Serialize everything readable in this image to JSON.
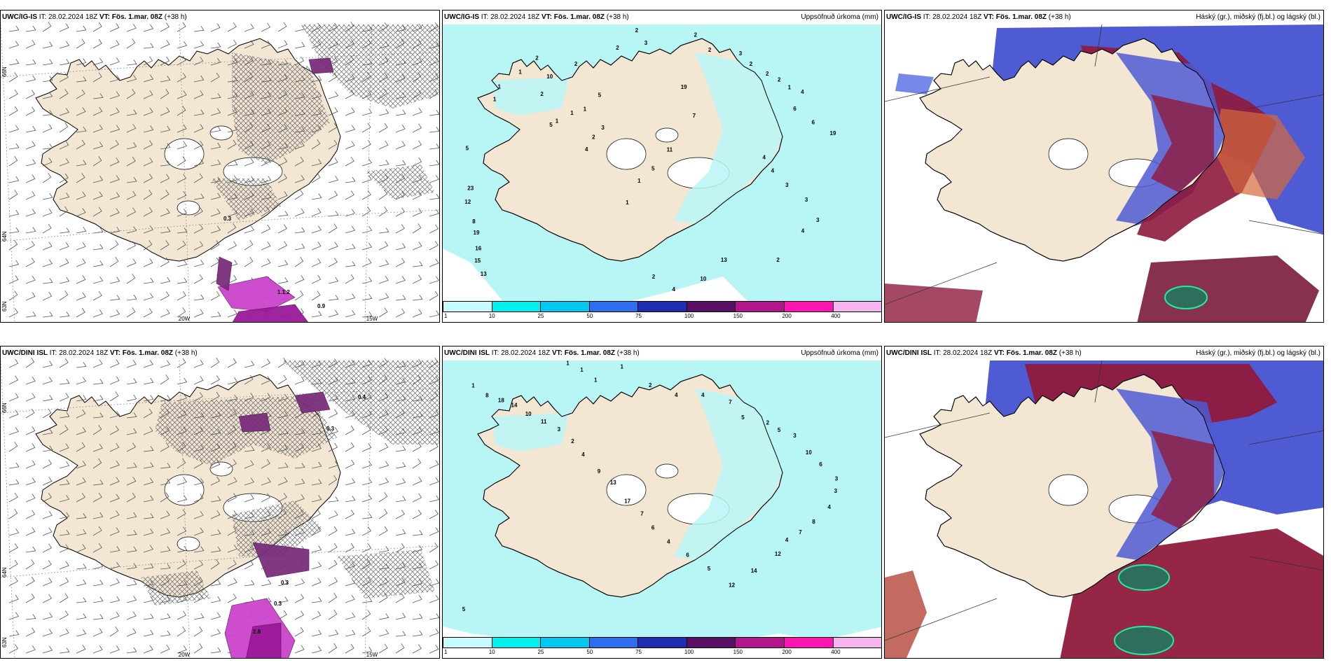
{
  "panels": {
    "top_wind": {
      "model": "UWC/IG-IS",
      "it": "IT: 28.02.2024 18Z",
      "vt_label": "VT:",
      "vt": "Fös. 1.mar. 08Z",
      "lead": "(+38 h)",
      "lon_labels": [
        "20W",
        "15W"
      ],
      "lat_labels": [
        "66N",
        "64N",
        "63N"
      ],
      "values": [
        "1.1.2",
        "0.9",
        "0.3"
      ]
    },
    "top_precip": {
      "model": "UWC/IG-IS",
      "it": "IT: 28.02.2024 18Z",
      "vt_label": "VT:",
      "vt": "Fös. 1.mar. 08Z",
      "lead": "(+38 h)",
      "right_title": "Uppsöfnuð úrkoma (mm)",
      "numbers": [
        "2",
        "3",
        "2",
        "2",
        "2",
        "10",
        "2",
        "1",
        "1",
        "1",
        "5",
        "23",
        "12",
        "8",
        "19",
        "16",
        "15",
        "13",
        "2",
        "2",
        "3",
        "2",
        "2",
        "2",
        "1",
        "4",
        "6",
        "6",
        "19",
        "4",
        "4",
        "3",
        "3",
        "3",
        "4",
        "2",
        "13",
        "10",
        "4",
        "2",
        "3",
        "2",
        "4",
        "5",
        "19",
        "7",
        "11",
        "5",
        "1",
        "1",
        "1",
        "1",
        "1",
        "5"
      ]
    },
    "top_cloud": {
      "model": "UWC/IG-IS",
      "it": "IT: 28.02.2024 18Z",
      "vt_label": "VT:",
      "vt": "Fös. 1.mar. 08Z",
      "lead": "(+38 h)",
      "right_title": "Háský (gr.), miðský (fj.bl.) og lágský (bl.)"
    },
    "bottom_wind": {
      "model": "UWC/DINI ISL",
      "it": "IT: 28.02.2024 18Z",
      "vt_label": "VT:",
      "vt": "Fös. 1.mar. 08Z",
      "lead": "(+38 h)",
      "lon_labels": [
        "20W",
        "15W"
      ],
      "lat_labels": [
        "66N",
        "64N",
        "63N"
      ],
      "values": [
        "0.3",
        "0.3",
        "0.4",
        "0.3",
        "2.8"
      ]
    },
    "bottom_precip": {
      "model": "UWC/DINI ISL",
      "it": "IT: 28.02.2024 18Z",
      "vt_label": "VT:",
      "vt": "Fös. 1.mar. 08Z",
      "lead": "(+38 h)",
      "right_title": "Uppsöfnuð úrkoma (mm)",
      "numbers": [
        "1",
        "1",
        "1",
        "1",
        "2",
        "4",
        "4",
        "7",
        "5",
        "2",
        "5",
        "3",
        "10",
        "6",
        "3",
        "3",
        "4",
        "8",
        "7",
        "4",
        "12",
        "14",
        "12",
        "5",
        "6",
        "4",
        "6",
        "7",
        "17",
        "13",
        "9",
        "4",
        "2",
        "3",
        "11",
        "10",
        "14",
        "18",
        "8",
        "1",
        "5"
      ]
    },
    "bottom_cloud": {
      "model": "UWC/DINI ISL",
      "it": "IT: 28.02.2024 18Z",
      "vt_label": "VT:",
      "vt": "Fös. 1.mar. 08Z",
      "lead": "(+38 h)",
      "right_title": "Háský (gr.), miðský (fj.bl.) og lágský (bl.)"
    }
  },
  "precip_legend": {
    "ticks": [
      "1",
      "10",
      "25",
      "50",
      "75",
      "100",
      "150",
      "200",
      "400"
    ],
    "colors": [
      "#c8fbff",
      "#00f0f0",
      "#00c8f0",
      "#2d6ef0",
      "#1e2eb4",
      "#5a0f64",
      "#b4148c",
      "#ff14b4",
      "#f5b4f0"
    ]
  },
  "colors": {
    "land": "#f3e6d3",
    "precip_light": "#b8f6f6",
    "hatch": "#666666"
  }
}
